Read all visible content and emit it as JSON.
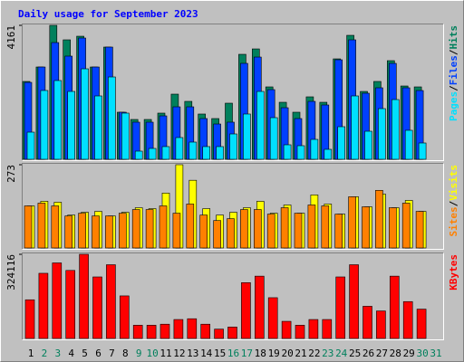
{
  "chart_data": {
    "type": "bar",
    "title": "Daily usage for September 2023",
    "categories": [
      "1",
      "2",
      "3",
      "4",
      "5",
      "6",
      "7",
      "8",
      "9",
      "10",
      "11",
      "12",
      "13",
      "14",
      "15",
      "16",
      "17",
      "18",
      "19",
      "20",
      "21",
      "22",
      "23",
      "24",
      "25",
      "26",
      "27",
      "28",
      "29",
      "30",
      "31"
    ],
    "category_colors": [
      "#000000",
      "#00805c",
      "#00805c",
      "#000000",
      "#000000",
      "#000000",
      "#000000",
      "#000000",
      "#00805c",
      "#00805c",
      "#000000",
      "#000000",
      "#000000",
      "#000000",
      "#000000",
      "#00805c",
      "#00805c",
      "#000000",
      "#000000",
      "#000000",
      "#000000",
      "#000000",
      "#00805c",
      "#00805c",
      "#000000",
      "#000000",
      "#000000",
      "#000000",
      "#000000",
      "#00805c",
      "#00805c"
    ],
    "separator": "/",
    "panels": [
      {
        "ylim": [
          0,
          4161
        ],
        "yticks": [
          4161
        ],
        "series": [
          {
            "name": "Hits",
            "color": "#00805c",
            "values": [
              2418,
              2867,
              4161,
              3711,
              3823,
              2867,
              3486,
              1462,
              1237,
              1237,
              1434,
              2024,
              1799,
              1406,
              1265,
              1743,
              3261,
              3429,
              2249,
              1771,
              1462,
              1940,
              1771,
              3120,
              3851,
              2108,
              2418,
              3064,
              2277,
              2249,
              null
            ]
          },
          {
            "name": "Files",
            "color": "#0040ff",
            "values": [
              2389,
              2867,
              3626,
              3205,
              3767,
              2867,
              3486,
              1462,
              1153,
              1153,
              1349,
              1630,
              1630,
              1265,
              1096,
              1153,
              2980,
              3176,
              2164,
              1602,
              1265,
              1799,
              1687,
              3092,
              3711,
              2052,
              2221,
              2980,
              2221,
              2136,
              null
            ]
          },
          {
            "name": "Pages",
            "color": "#00e0ff",
            "values": [
              843,
              2137,
              2446,
              2108,
              2811,
              1968,
              2558,
              1434,
              253,
              337,
              394,
              675,
              534,
              394,
              394,
              787,
              1406,
              2108,
              1293,
              450,
              422,
              618,
              309,
              1012,
              1968,
              871,
              1574,
              1855,
              900,
              506,
              null
            ]
          }
        ]
      },
      {
        "ylim": [
          0,
          273
        ],
        "yticks": [
          273
        ],
        "series": [
          {
            "name": "Visits",
            "color": "#ffff00",
            "values": [
              138,
              153,
              150,
              108,
              117,
              120,
              105,
              117,
              132,
              129,
              180,
              273,
              222,
              129,
              108,
              117,
              132,
              153,
              114,
              141,
              114,
              174,
              144,
              111,
              168,
              135,
              177,
              132,
              156,
              120,
              null
            ]
          },
          {
            "name": "Sites",
            "color": "#ff8000",
            "values": [
              138,
              147,
              138,
              105,
              114,
              105,
              105,
              114,
              126,
              126,
              138,
              114,
              144,
              108,
              90,
              96,
              126,
              126,
              111,
              132,
              114,
              141,
              138,
              111,
              168,
              135,
              189,
              132,
              147,
              120,
              null
            ]
          }
        ]
      },
      {
        "ylim": [
          0,
          324116
        ],
        "yticks": [
          324116
        ],
        "series": [
          {
            "name": "KBytes",
            "color": "#ff0000",
            "values": [
              149000,
              251000,
              291000,
              262000,
              324116,
              237000,
              284000,
              164000,
              51000,
              51000,
              55000,
              73000,
              76000,
              55000,
              36000,
              44000,
              215000,
              240000,
              157000,
              66000,
              51000,
              73000,
              73000,
              237000,
              284000,
              124000,
              106000,
              240000,
              142000,
              113000,
              null
            ]
          }
        ]
      }
    ]
  }
}
